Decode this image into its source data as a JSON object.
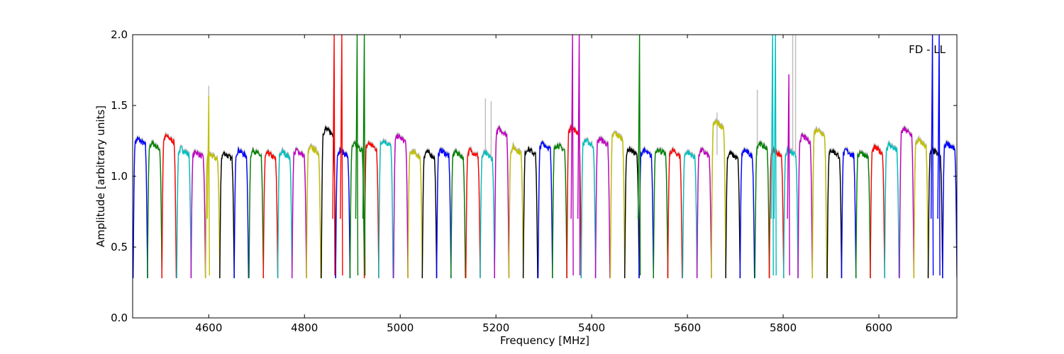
{
  "chart_data": {
    "type": "line",
    "title": "",
    "annotation": "FD - LL",
    "xlabel": "Frequency [MHz]",
    "ylabel": "Amplitude [arbitrary units]",
    "xlim": [
      4441,
      6163
    ],
    "ylim": [
      0.0,
      2.0
    ],
    "xticks": [
      "4600",
      "4800",
      "5000",
      "5200",
      "5400",
      "5600",
      "5800",
      "6000"
    ],
    "xtick_values": [
      4600,
      4800,
      5000,
      5200,
      5400,
      5600,
      5800,
      6000
    ],
    "yticks": [
      "0.0",
      "0.5",
      "1.0",
      "1.5",
      "2.0"
    ],
    "ytick_values": [
      0.0,
      0.5,
      1.0,
      1.5,
      2.0
    ],
    "grid": false,
    "color_cycle": [
      "#0000ff",
      "#008000",
      "#ff0000",
      "#00bfbf",
      "#bf00bf",
      "#bfbf00",
      "#000000"
    ],
    "background_trace_color": "#bfbfbf",
    "subband_width_mhz": 30.2,
    "subband_floor": 0.28,
    "subband_starts_mhz": [
      4442,
      4472,
      4502,
      4533,
      4563,
      4593,
      4623,
      4653,
      4684,
      4714,
      4744,
      4774,
      4804,
      4835,
      4865,
      4895,
      4925,
      4955,
      4986,
      5016,
      5046,
      5076,
      5106,
      5137,
      5167,
      5197,
      5227,
      5257,
      5288,
      5318,
      5348,
      5378,
      5408,
      5439,
      5469,
      5499,
      5529,
      5559,
      5590,
      5620,
      5650,
      5680,
      5710,
      5741,
      5771,
      5801,
      5831,
      5861,
      5892,
      5922,
      5952,
      5982,
      6012,
      6043,
      6073,
      6103,
      6133
    ],
    "subband_levels": [
      1.28,
      1.25,
      1.3,
      1.21,
      1.19,
      1.17,
      1.18,
      1.2,
      1.2,
      1.18,
      1.19,
      1.2,
      1.22,
      1.35,
      1.2,
      1.24,
      1.25,
      1.27,
      1.3,
      1.19,
      1.19,
      1.2,
      1.19,
      1.2,
      1.18,
      1.35,
      1.22,
      1.21,
      1.25,
      1.24,
      1.36,
      1.27,
      1.28,
      1.32,
      1.21,
      1.2,
      1.21,
      1.2,
      1.19,
      1.2,
      1.4,
      1.18,
      1.2,
      1.25,
      1.2,
      1.2,
      1.3,
      1.35,
      1.2,
      1.2,
      1.19,
      1.22,
      1.24,
      1.35,
      1.27,
      1.2,
      1.25
    ],
    "spikes": [
      {
        "freq": 4600,
        "color_index": 5,
        "peak": 1.57
      },
      {
        "freq": 4862,
        "color_index": 2,
        "peak": 2.0
      },
      {
        "freq": 4878,
        "color_index": 2,
        "peak": 2.0
      },
      {
        "freq": 4910,
        "color_index": 1,
        "peak": 2.0
      },
      {
        "freq": 4925,
        "color_index": 1,
        "peak": 2.0
      },
      {
        "freq": 5360,
        "color_index": 4,
        "peak": 2.0
      },
      {
        "freq": 5374,
        "color_index": 4,
        "peak": 2.0
      },
      {
        "freq": 5500,
        "color_index": 1,
        "peak": 2.0
      },
      {
        "freq": 5778,
        "color_index": 3,
        "peak": 2.0
      },
      {
        "freq": 5784,
        "color_index": 3,
        "peak": 2.0
      },
      {
        "freq": 5812,
        "color_index": 4,
        "peak": 1.72
      },
      {
        "freq": 6112,
        "color_index": 0,
        "peak": 2.0
      },
      {
        "freq": 6126,
        "color_index": 0,
        "peak": 2.0
      }
    ],
    "background_spikes": [
      {
        "freq": 4600,
        "peak": 1.64
      },
      {
        "freq": 5178,
        "peak": 1.55
      },
      {
        "freq": 5190,
        "peak": 1.53
      },
      {
        "freq": 5662,
        "peak": 1.45
      },
      {
        "freq": 5746,
        "peak": 1.61
      },
      {
        "freq": 5820,
        "peak": 2.0
      },
      {
        "freq": 5826,
        "peak": 2.0
      }
    ]
  }
}
